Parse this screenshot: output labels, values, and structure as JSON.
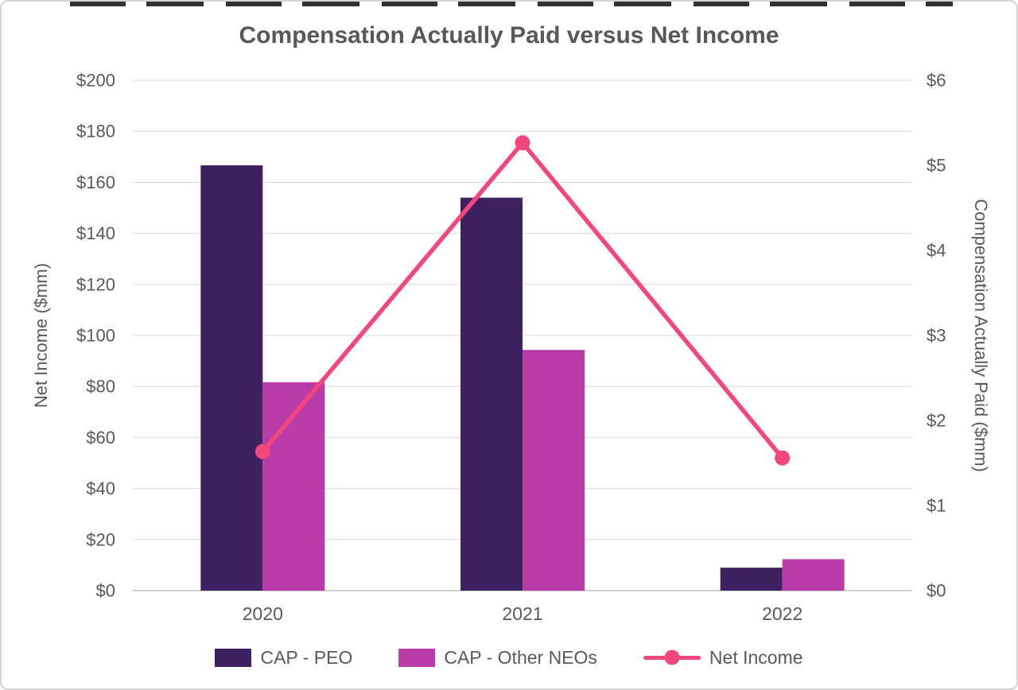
{
  "chart_data": {
    "type": "combo-bar-line",
    "title": "Compensation Actually Paid versus Net Income",
    "categories": [
      "2020",
      "2021",
      "2022"
    ],
    "bar_series": [
      {
        "name": "CAP - PEO",
        "axis": "right",
        "color": "#3E2160",
        "values": [
          5.0,
          4.62,
          0.27
        ]
      },
      {
        "name": "CAP - Other NEOs",
        "axis": "right",
        "color": "#B93CA8",
        "values": [
          2.45,
          2.83,
          0.37
        ]
      }
    ],
    "line_series": [
      {
        "name": "Net Income",
        "axis": "left",
        "color": "#F2477B",
        "values": [
          54.5,
          175.5,
          52
        ]
      }
    ],
    "left_axis": {
      "label": "Net Income ($mm)",
      "min": 0,
      "max": 200,
      "step": 20,
      "tick_labels": [
        "$0",
        "$20",
        "$40",
        "$60",
        "$80",
        "$100",
        "$120",
        "$140",
        "$160",
        "$180",
        "$200"
      ]
    },
    "right_axis": {
      "label": "Compensation Actually Paid ($mm)",
      "min": 0,
      "max": 6,
      "step": 1,
      "tick_labels": [
        "$0",
        "$1",
        "$2",
        "$3",
        "$4",
        "$5",
        "$6"
      ]
    },
    "grid": true,
    "gridline_color": "#D9D9D9",
    "legend_position": "bottom"
  }
}
